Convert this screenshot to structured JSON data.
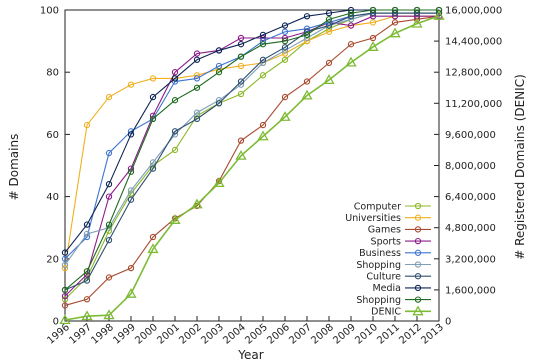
{
  "chart_data": {
    "type": "line",
    "title": "",
    "xlabel": "Year",
    "ylabel": "# Domains",
    "y2label": "# Registered Domains (DENIC)",
    "x": [
      1996,
      1997,
      1998,
      1999,
      2000,
      2001,
      2002,
      2003,
      2004,
      2005,
      2006,
      2007,
      2008,
      2009,
      2010,
      2011,
      2012,
      2013
    ],
    "x_tick_labels": [
      "1996",
      "1997",
      "1998",
      "1999",
      "2000",
      "2001",
      "2002",
      "2003",
      "2004",
      "2005",
      "2006",
      "2007",
      "2008",
      "2009",
      "2010",
      "2011",
      "2012",
      "2013"
    ],
    "ylim": [
      0,
      100
    ],
    "y_ticks": [
      0,
      20,
      40,
      60,
      80,
      100
    ],
    "y_tick_labels": [
      "0",
      "20",
      "40",
      "60",
      "80",
      "100"
    ],
    "y2lim": [
      0,
      16000000
    ],
    "y2_ticks": [
      0,
      1600000,
      3200000,
      4800000,
      6400000,
      8000000,
      9600000,
      11200000,
      12800000,
      14400000,
      16000000
    ],
    "y2_tick_labels": [
      "0",
      "1,600,000",
      "3,200,000",
      "4,800,000",
      "6,400,000",
      "8,000,000",
      "9,600,000",
      "11,200,000",
      "12,800,000",
      "14,400,000",
      "16,000,000"
    ],
    "grid": false,
    "legend_position": "bottom-right",
    "series": [
      {
        "name": "Computer",
        "color": "#8cb82a",
        "marker": "circle",
        "axis": "left",
        "values": [
          7,
          14,
          29,
          41,
          50,
          55,
          66,
          70,
          73,
          79,
          84,
          90,
          94,
          97,
          99,
          99,
          99,
          99
        ]
      },
      {
        "name": "Universities",
        "color": "#f0b020",
        "marker": "circle",
        "axis": "left",
        "values": [
          17,
          63,
          72,
          76,
          78,
          78,
          79,
          81,
          82,
          83,
          86,
          90,
          93,
          95,
          96,
          98,
          98,
          98
        ]
      },
      {
        "name": "Games",
        "color": "#a84a2e",
        "marker": "circle",
        "axis": "left",
        "values": [
          5,
          7,
          14,
          17,
          27,
          33,
          37,
          45,
          58,
          63,
          72,
          77,
          83,
          89,
          91,
          96,
          97,
          98
        ]
      },
      {
        "name": "Sports",
        "color": "#8b1e8a",
        "marker": "circle",
        "axis": "left",
        "values": [
          8,
          15,
          40,
          49,
          66,
          80,
          86,
          87,
          91,
          91,
          91,
          93,
          96,
          95,
          98,
          98,
          98,
          98
        ]
      },
      {
        "name": "Business",
        "color": "#3f74d0",
        "marker": "circle",
        "axis": "left",
        "values": [
          20,
          27,
          54,
          61,
          65,
          77,
          78,
          82,
          85,
          90,
          93,
          94,
          96,
          98,
          99,
          99,
          99,
          99
        ]
      },
      {
        "name": "Shopping",
        "color": "#7f9fb6",
        "marker": "circle",
        "axis": "left",
        "values": [
          18,
          28,
          30,
          42,
          51,
          60,
          67,
          71,
          76,
          83,
          87,
          91,
          95,
          97,
          99,
          99,
          99,
          99
        ]
      },
      {
        "name": "Culture",
        "color": "#2e4f6f",
        "marker": "circle",
        "axis": "left",
        "values": [
          10,
          13,
          26,
          39,
          49,
          61,
          65,
          70,
          77,
          84,
          88,
          93,
          95,
          98,
          99,
          99,
          99,
          99
        ]
      },
      {
        "name": "Media",
        "color": "#0e2454",
        "marker": "circle",
        "axis": "left",
        "values": [
          22,
          31,
          44,
          60,
          72,
          78,
          84,
          87,
          89,
          92,
          95,
          98,
          99,
          100,
          100,
          100,
          100,
          100
        ]
      },
      {
        "name": "Shopping",
        "color": "#1f6b1f",
        "marker": "circle",
        "axis": "left",
        "values": [
          10,
          16,
          31,
          48,
          65,
          71,
          75,
          80,
          85,
          89,
          90,
          92,
          97,
          99,
          100,
          100,
          100,
          100
        ]
      },
      {
        "name": "DENIC",
        "color": "#7dbb35",
        "marker": "triangle",
        "axis": "right",
        "values": [
          50000,
          250000,
          300000,
          1400000,
          3700000,
          5200000,
          6000000,
          7100000,
          8500000,
          9500000,
          10500000,
          11600000,
          12400000,
          13300000,
          14100000,
          14800000,
          15300000,
          15700000
        ]
      }
    ]
  }
}
